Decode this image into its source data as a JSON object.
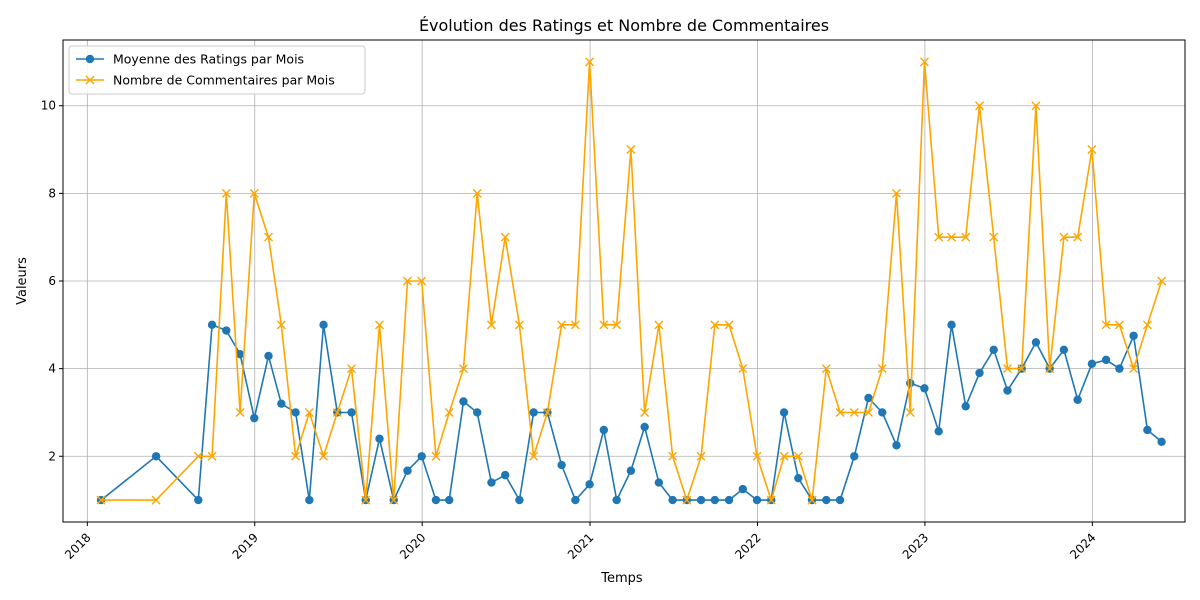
{
  "chart_data": {
    "type": "line",
    "title": "Évolution des Ratings et Nombre de Commentaires",
    "xlabel": "Temps",
    "ylabel": "Valeurs",
    "xlim": [
      "2017-11-09",
      "2024-07-21"
    ],
    "ylim": [
      0.5,
      11.5
    ],
    "x_ticks": [
      "2018",
      "2019",
      "2020",
      "2021",
      "2022",
      "2023",
      "2024"
    ],
    "y_ticks": [
      2,
      4,
      6,
      8,
      10
    ],
    "grid": true,
    "legend_position": "top-left",
    "series": [
      {
        "name": "Moyenne des Ratings par Mois",
        "color": "#1f77b4",
        "marker": "circle",
        "points": [
          [
            "2018-01-31",
            1
          ],
          [
            "2018-05-31",
            2
          ],
          [
            "2018-08-31",
            1
          ],
          [
            "2018-09-30",
            5
          ],
          [
            "2018-10-31",
            4.87
          ],
          [
            "2018-11-30",
            4.33
          ],
          [
            "2018-12-31",
            2.87
          ],
          [
            "2019-01-31",
            4.29
          ],
          [
            "2019-02-28",
            3.2
          ],
          [
            "2019-03-31",
            3
          ],
          [
            "2019-04-30",
            1
          ],
          [
            "2019-05-31",
            5
          ],
          [
            "2019-06-30",
            3
          ],
          [
            "2019-07-31",
            3
          ],
          [
            "2019-08-31",
            1
          ],
          [
            "2019-09-30",
            2.4
          ],
          [
            "2019-10-31",
            1
          ],
          [
            "2019-11-30",
            1.67
          ],
          [
            "2019-12-31",
            2
          ],
          [
            "2020-01-31",
            1
          ],
          [
            "2020-02-29",
            1
          ],
          [
            "2020-03-31",
            3.25
          ],
          [
            "2020-04-30",
            3
          ],
          [
            "2020-05-31",
            1.4
          ],
          [
            "2020-06-30",
            1.57
          ],
          [
            "2020-07-31",
            1
          ],
          [
            "2020-08-31",
            3
          ],
          [
            "2020-09-30",
            3
          ],
          [
            "2020-10-31",
            1.8
          ],
          [
            "2020-11-30",
            1
          ],
          [
            "2020-12-31",
            1.36
          ],
          [
            "2021-01-31",
            2.6
          ],
          [
            "2021-02-28",
            1
          ],
          [
            "2021-03-31",
            1.67
          ],
          [
            "2021-04-30",
            2.67
          ],
          [
            "2021-05-31",
            1.4
          ],
          [
            "2021-06-30",
            1
          ],
          [
            "2021-07-31",
            1
          ],
          [
            "2021-08-31",
            1
          ],
          [
            "2021-09-30",
            1
          ],
          [
            "2021-10-31",
            1
          ],
          [
            "2021-11-30",
            1.25
          ],
          [
            "2021-12-31",
            1
          ],
          [
            "2022-01-31",
            1
          ],
          [
            "2022-02-28",
            3
          ],
          [
            "2022-03-31",
            1.5
          ],
          [
            "2022-04-30",
            1
          ],
          [
            "2022-05-31",
            1
          ],
          [
            "2022-06-30",
            1
          ],
          [
            "2022-07-31",
            2
          ],
          [
            "2022-08-31",
            3.33
          ],
          [
            "2022-09-30",
            3
          ],
          [
            "2022-10-31",
            2.25
          ],
          [
            "2022-11-30",
            3.67
          ],
          [
            "2022-12-31",
            3.55
          ],
          [
            "2023-01-31",
            2.57
          ],
          [
            "2023-02-28",
            5
          ],
          [
            "2023-03-31",
            3.14
          ],
          [
            "2023-04-30",
            3.9
          ],
          [
            "2023-05-31",
            4.43
          ],
          [
            "2023-06-30",
            3.5
          ],
          [
            "2023-07-31",
            4
          ],
          [
            "2023-08-31",
            4.6
          ],
          [
            "2023-09-30",
            4
          ],
          [
            "2023-10-31",
            4.43
          ],
          [
            "2023-11-30",
            3.29
          ],
          [
            "2023-12-31",
            4.11
          ],
          [
            "2024-01-31",
            4.2
          ],
          [
            "2024-02-29",
            4
          ],
          [
            "2024-03-31",
            4.75
          ],
          [
            "2024-04-30",
            2.6
          ],
          [
            "2024-05-31",
            2.33
          ]
        ]
      },
      {
        "name": "Nombre de Commentaires par Mois",
        "color": "#ffa500",
        "marker": "x",
        "points": [
          [
            "2018-01-31",
            1
          ],
          [
            "2018-05-31",
            1
          ],
          [
            "2018-08-31",
            2
          ],
          [
            "2018-09-30",
            2
          ],
          [
            "2018-10-31",
            8
          ],
          [
            "2018-11-30",
            3
          ],
          [
            "2018-12-31",
            8
          ],
          [
            "2019-01-31",
            7
          ],
          [
            "2019-02-28",
            5
          ],
          [
            "2019-03-31",
            2
          ],
          [
            "2019-04-30",
            3
          ],
          [
            "2019-05-31",
            2
          ],
          [
            "2019-06-30",
            3
          ],
          [
            "2019-07-31",
            4
          ],
          [
            "2019-08-31",
            1
          ],
          [
            "2019-09-30",
            5
          ],
          [
            "2019-10-31",
            1
          ],
          [
            "2019-11-30",
            6
          ],
          [
            "2019-12-31",
            6
          ],
          [
            "2020-01-31",
            2
          ],
          [
            "2020-02-29",
            3
          ],
          [
            "2020-03-31",
            4
          ],
          [
            "2020-04-30",
            8
          ],
          [
            "2020-05-31",
            5
          ],
          [
            "2020-06-30",
            7
          ],
          [
            "2020-07-31",
            5
          ],
          [
            "2020-08-31",
            2
          ],
          [
            "2020-09-30",
            3
          ],
          [
            "2020-10-31",
            5
          ],
          [
            "2020-11-30",
            5
          ],
          [
            "2020-12-31",
            11
          ],
          [
            "2021-01-31",
            5
          ],
          [
            "2021-02-28",
            5
          ],
          [
            "2021-03-31",
            9
          ],
          [
            "2021-04-30",
            3
          ],
          [
            "2021-05-31",
            5
          ],
          [
            "2021-06-30",
            2
          ],
          [
            "2021-07-31",
            1
          ],
          [
            "2021-08-31",
            2
          ],
          [
            "2021-09-30",
            5
          ],
          [
            "2021-10-31",
            5
          ],
          [
            "2021-11-30",
            4
          ],
          [
            "2021-12-31",
            2
          ],
          [
            "2022-01-31",
            1
          ],
          [
            "2022-02-28",
            2
          ],
          [
            "2022-03-31",
            2
          ],
          [
            "2022-04-30",
            1
          ],
          [
            "2022-05-31",
            4
          ],
          [
            "2022-06-30",
            3
          ],
          [
            "2022-07-31",
            3
          ],
          [
            "2022-08-31",
            3
          ],
          [
            "2022-09-30",
            4
          ],
          [
            "2022-10-31",
            8
          ],
          [
            "2022-11-30",
            3
          ],
          [
            "2022-12-31",
            11
          ],
          [
            "2023-01-31",
            7
          ],
          [
            "2023-02-28",
            7
          ],
          [
            "2023-03-31",
            7
          ],
          [
            "2023-04-30",
            10
          ],
          [
            "2023-05-31",
            7
          ],
          [
            "2023-06-30",
            4
          ],
          [
            "2023-07-31",
            4
          ],
          [
            "2023-08-31",
            10
          ],
          [
            "2023-09-30",
            4
          ],
          [
            "2023-10-31",
            7
          ],
          [
            "2023-11-30",
            7
          ],
          [
            "2023-12-31",
            9
          ],
          [
            "2024-01-31",
            5
          ],
          [
            "2024-02-29",
            5
          ],
          [
            "2024-03-31",
            4
          ],
          [
            "2024-04-30",
            5
          ],
          [
            "2024-05-31",
            6
          ]
        ]
      }
    ]
  }
}
